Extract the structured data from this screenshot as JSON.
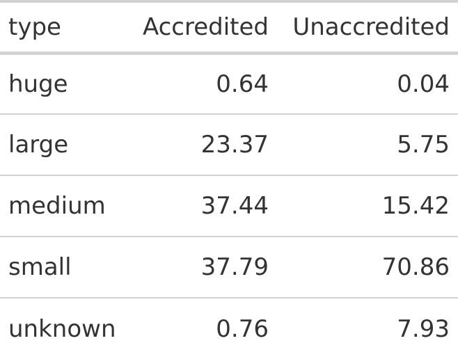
{
  "table": {
    "headers": [
      "type",
      "Accredited",
      "Unaccredited"
    ],
    "rows": [
      [
        "huge",
        "0.64",
        "0.04"
      ],
      [
        "large",
        "23.37",
        "5.75"
      ],
      [
        "medium",
        "37.44",
        "15.42"
      ],
      [
        "small",
        "37.79",
        "70.86"
      ],
      [
        "unknown",
        "0.76",
        "7.93"
      ]
    ]
  },
  "colors": {
    "text": "#333333",
    "rule": "#d3d3d3",
    "background": "#ffffff"
  }
}
